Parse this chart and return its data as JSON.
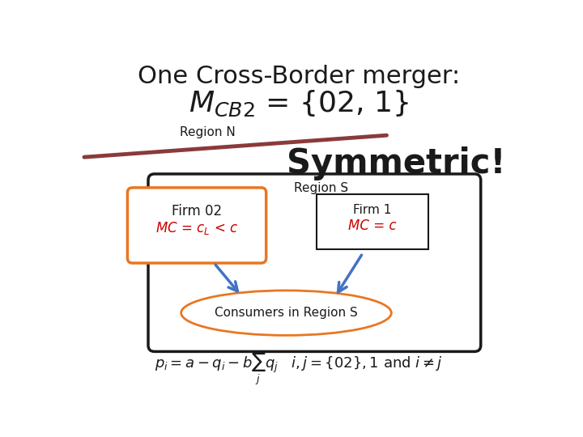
{
  "title_line1": "One Cross-Border merger:",
  "region_n_label": "Region N",
  "symmetric_label": "Symmetric!",
  "region_s_label": "Region S",
  "firm02_label": "Firm 02",
  "firm02_mc": "MC = c$_L$ < c",
  "firm1_label": "Firm 1",
  "firm1_mc": "MC = c",
  "consumers_label": "Consumers in Region S",
  "bg_color": "#ffffff",
  "orange_color": "#E87722",
  "dark_color": "#1a1a1a",
  "red_color": "#cc0000",
  "blue_arrow_color": "#4472C4",
  "line_color": "#8B3A3A",
  "region_s_box_color": "#1a1a1a",
  "firm1_box_color": "#1a1a1a"
}
